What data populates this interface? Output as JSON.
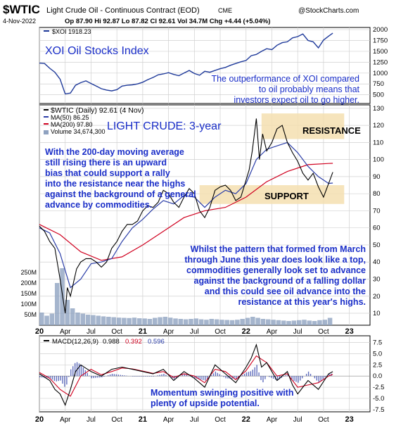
{
  "header": {
    "symbol": "$WTIC",
    "name": "Light Crude Oil - Continuous Contract (EOD)",
    "exchange": "CME",
    "brand": "@StockCharts.com",
    "date": "4-Nov-2022",
    "ohlc": "Op 87.90  Hi 92.87  Lo 87.82  Cl 92.61  Vol 34.7M  Chg +4.44 (+5.04%)"
  },
  "colors": {
    "background": "#ffffff",
    "panel_fill": "#ffffff",
    "frame": "#000000",
    "grid": "#d0d0d0",
    "xoi_line": "#1f3a9a",
    "price_line": "#000000",
    "ma50": "#2b3ea8",
    "ma200": "#d0001f",
    "volume": "#8fa2c0",
    "zone": "#f5dfb0",
    "highlight": "#b98d5a",
    "macd": "#000000",
    "signal": "#d0001f",
    "histogram": "#2b3ea8",
    "annotation": "#1a2ec8"
  },
  "chart_data": [
    {
      "type": "line",
      "panel": "top",
      "legend": "$XOI 1918.23",
      "label": "XOI Oil Stocks Index",
      "annotation": "The outperformance of XOI compared to oil probably means that investors expect oil to go higher.",
      "ylim": [
        300,
        2050
      ],
      "y_ticks": [
        500,
        750,
        1000,
        1250,
        1500,
        1750,
        2000
      ],
      "x": [
        0,
        0.05,
        0.1,
        0.15,
        0.2,
        0.25,
        0.3,
        0.35,
        0.4,
        0.45,
        0.5,
        0.55,
        0.6,
        0.65,
        0.7,
        0.75,
        0.8,
        0.85,
        0.9,
        0.95,
        1.0,
        1.05,
        1.1,
        1.15,
        1.2,
        1.25,
        1.3,
        1.35,
        1.4,
        1.45,
        1.5,
        1.55,
        1.6,
        1.65,
        1.7,
        1.75,
        1.8,
        1.85,
        1.9,
        1.95,
        2.0,
        2.05,
        2.1,
        2.15,
        2.2,
        2.25,
        2.3,
        2.35,
        2.4,
        2.45,
        2.5,
        2.55,
        2.6,
        2.65,
        2.7,
        2.75,
        2.8,
        2.84
      ],
      "values": [
        1230,
        1220,
        1110,
        1020,
        860,
        520,
        540,
        720,
        780,
        820,
        760,
        700,
        640,
        610,
        590,
        620,
        700,
        720,
        730,
        750,
        790,
        850,
        900,
        960,
        980,
        1010,
        970,
        940,
        1000,
        1060,
        990,
        950,
        1040,
        1020,
        1060,
        1100,
        1130,
        1180,
        1220,
        1260,
        1290,
        1400,
        1430,
        1500,
        1560,
        1540,
        1640,
        1700,
        1720,
        1810,
        1840,
        1900,
        1750,
        1720,
        1580,
        1760,
        1850,
        1918
      ]
    },
    {
      "type": "line",
      "panel": "price",
      "legend": [
        "$WTIC (Daily) 92.61 (4 Nov)",
        "MA(50) 86.25",
        "MA(200) 97.80",
        "Volume 34,674,300"
      ],
      "label": "LIGHT CRUDE: 3-year",
      "ylim": [
        3,
        132
      ],
      "y_ticks": [
        10,
        20,
        30,
        40,
        50,
        60,
        70,
        80,
        90,
        100,
        110,
        120,
        130
      ],
      "volume_ticks": [
        "250M",
        "200M",
        "150M",
        "100M",
        "50M"
      ],
      "zones": [
        {
          "label": "RESISTANCE",
          "y_range": [
            112,
            127
          ],
          "x_range": [
            2.15,
            2.95
          ]
        },
        {
          "label": "SUPPORT",
          "y_range": [
            74,
            85
          ],
          "x_range": [
            1.55,
            2.95
          ]
        }
      ],
      "annotations": [
        "With the 200-day moving average still rising there is an upward bias that could support a rally into the resistance near the highs against the background of a general advance by commodities.",
        "Whilst the pattern that formed from March through June this year does look like a top, commodities generally look set to advance against the background of a falling dollar and this could see oil advance into the resistance at this year's highs."
      ],
      "series": [
        {
          "name": "$WTIC",
          "x": [
            0,
            0.05,
            0.1,
            0.15,
            0.2,
            0.25,
            0.27,
            0.3,
            0.33,
            0.36,
            0.4,
            0.45,
            0.5,
            0.55,
            0.6,
            0.65,
            0.7,
            0.75,
            0.8,
            0.85,
            0.9,
            0.95,
            1.0,
            1.05,
            1.1,
            1.15,
            1.2,
            1.25,
            1.3,
            1.35,
            1.4,
            1.45,
            1.5,
            1.55,
            1.6,
            1.65,
            1.7,
            1.75,
            1.8,
            1.85,
            1.9,
            1.95,
            2.0,
            2.03,
            2.06,
            2.1,
            2.13,
            2.16,
            2.2,
            2.25,
            2.3,
            2.35,
            2.4,
            2.45,
            2.5,
            2.55,
            2.6,
            2.65,
            2.7,
            2.75,
            2.8,
            2.84
          ],
          "values": [
            61,
            58,
            52,
            48,
            30,
            10,
            25,
            20,
            28,
            36,
            40,
            42,
            42,
            40,
            37,
            40,
            48,
            52,
            58,
            62,
            62,
            64,
            70,
            73,
            72,
            75,
            82,
            80,
            75,
            72,
            78,
            83,
            80,
            70,
            66,
            72,
            82,
            84,
            85,
            82,
            76,
            78,
            88,
            94,
            105,
            124,
            100,
            115,
            105,
            110,
            118,
            120,
            110,
            104,
            99,
            92,
            88,
            92,
            84,
            78,
            86,
            92.61
          ]
        },
        {
          "name": "MA(50)",
          "x": [
            0,
            0.1,
            0.2,
            0.3,
            0.4,
            0.5,
            0.6,
            0.7,
            0.8,
            0.9,
            1.0,
            1.1,
            1.2,
            1.3,
            1.4,
            1.5,
            1.6,
            1.7,
            1.8,
            1.9,
            2.0,
            2.1,
            2.2,
            2.3,
            2.4,
            2.5,
            2.6,
            2.7,
            2.8,
            2.84
          ],
          "values": [
            60,
            57,
            45,
            25,
            30,
            39,
            40,
            42,
            52,
            60,
            65,
            71,
            76,
            74,
            79,
            78,
            72,
            78,
            82,
            80,
            86,
            100,
            106,
            108,
            110,
            104,
            96,
            90,
            86,
            86.25
          ]
        },
        {
          "name": "MA(200)",
          "x": [
            0,
            0.2,
            0.4,
            0.6,
            0.8,
            1.0,
            1.2,
            1.4,
            1.6,
            1.8,
            2.0,
            2.2,
            2.4,
            2.6,
            2.8,
            2.84
          ],
          "values": [
            62,
            56,
            46,
            41,
            43,
            50,
            58,
            66,
            70,
            72,
            78,
            87,
            93,
            97,
            97.7,
            97.8
          ]
        }
      ],
      "volume": [
        60,
        45,
        55,
        200,
        270,
        120,
        80,
        60,
        55,
        50,
        48,
        45,
        42,
        40,
        38,
        36,
        35,
        34,
        36,
        33,
        32,
        30,
        35,
        38,
        40,
        36,
        32,
        30,
        28,
        30,
        32,
        28,
        26,
        30,
        28,
        26,
        25,
        24,
        26,
        30,
        35,
        40,
        35,
        30,
        28,
        26,
        24,
        22,
        20,
        22,
        24,
        26,
        22,
        20,
        24,
        26,
        35
      ]
    },
    {
      "type": "line",
      "panel": "macd",
      "legend": [
        "MACD(12,26,9)",
        "0.988",
        "0.392",
        "0.596"
      ],
      "annotation": "Momentum swinging positive with plenty of upside potential.",
      "ylim": [
        -8,
        9
      ],
      "y_ticks": [
        "7.5",
        "5.0",
        "2.5",
        "0.0",
        "-2.5",
        "-5.0",
        "-7.5"
      ],
      "series": [
        {
          "name": "MACD",
          "x": [
            0,
            0.1,
            0.15,
            0.2,
            0.25,
            0.3,
            0.35,
            0.4,
            0.5,
            0.6,
            0.7,
            0.8,
            0.9,
            1.0,
            1.1,
            1.2,
            1.3,
            1.4,
            1.5,
            1.6,
            1.7,
            1.8,
            1.9,
            2.0,
            2.05,
            2.1,
            2.15,
            2.2,
            2.3,
            2.4,
            2.45,
            2.5,
            2.6,
            2.7,
            2.8,
            2.84
          ],
          "values": [
            0.5,
            -1,
            -3,
            -4,
            -6.5,
            -3,
            1,
            2.5,
            1,
            0,
            1.5,
            2,
            1.5,
            1,
            0.5,
            1.5,
            -1,
            1,
            -0.5,
            -2.5,
            2.5,
            0.5,
            -1.5,
            2,
            4,
            7,
            2,
            3,
            -1,
            1,
            -2,
            -4,
            -1,
            -3,
            0.5,
            0.988
          ]
        },
        {
          "name": "Signal",
          "x": [
            0,
            0.1,
            0.2,
            0.3,
            0.4,
            0.5,
            0.6,
            0.7,
            0.8,
            0.9,
            1.0,
            1.1,
            1.2,
            1.3,
            1.4,
            1.5,
            1.6,
            1.7,
            1.8,
            1.9,
            2.0,
            2.1,
            2.2,
            2.3,
            2.4,
            2.5,
            2.6,
            2.7,
            2.8,
            2.84
          ],
          "values": [
            0.8,
            -0.5,
            -3,
            -4.5,
            0,
            1.5,
            0.3,
            1,
            1.8,
            1.6,
            1.1,
            0.6,
            1,
            -0.3,
            0.5,
            0,
            -1.5,
            1.5,
            1,
            -0.8,
            1.2,
            4.5,
            3,
            0,
            0.5,
            -2.5,
            -2,
            -1.5,
            0,
            0.392
          ]
        }
      ]
    }
  ],
  "x_axis": {
    "labels": [
      "20",
      "Apr",
      "Jul",
      "Oct",
      "21",
      "Apr",
      "Jul",
      "Oct",
      "22",
      "Apr",
      "Jul",
      "Oct",
      "23"
    ],
    "positions": [
      0,
      0.25,
      0.5,
      0.75,
      1.0,
      1.25,
      1.5,
      1.75,
      2.0,
      2.25,
      2.5,
      2.75,
      3.0
    ]
  }
}
